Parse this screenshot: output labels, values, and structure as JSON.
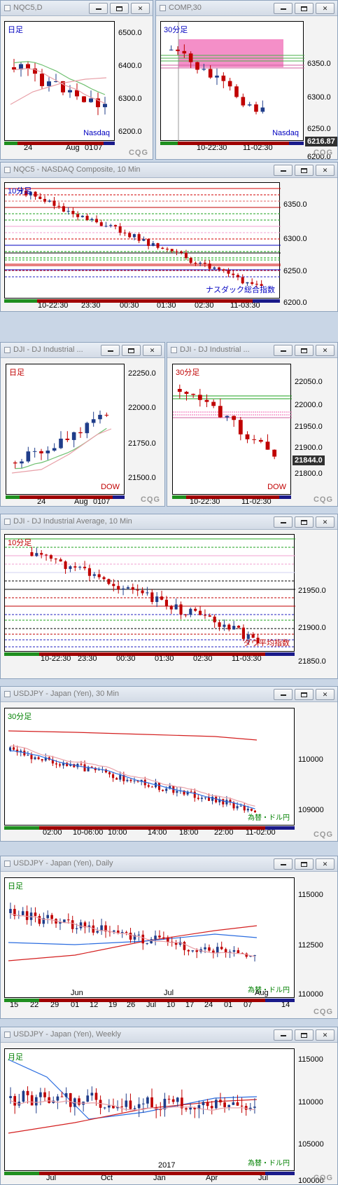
{
  "ui": {
    "minimize_label": "",
    "restore_label": "",
    "close_label": "✕",
    "brand": "CQG"
  },
  "colors": {
    "up": "#1f3d8a",
    "down": "#c00000",
    "ma_red": "#d42020",
    "ma_blue": "#2b6de0",
    "ma_pink": "#e8a0a8",
    "ma_green": "#6fc070"
  },
  "windows": [
    {
      "id": "nqc5-daily",
      "title": "NQC5,D",
      "period_label": "日足",
      "period_color": "#0000c0",
      "corner_label": "Nasdaq",
      "corner_color": "#0000c0",
      "y_ticks": [
        "6500.0",
        "6400.0",
        "6300.0",
        "6200.0"
      ],
      "x_ticks": [
        "24",
        "Aug",
        "01",
        "07"
      ]
    },
    {
      "id": "comp-30",
      "title": "COMP,30",
      "period_label": "30分足",
      "period_color": "#0000c0",
      "corner_label": "Nasdaq",
      "corner_color": "#0000c0",
      "price_box": "6216.87",
      "y_ticks": [
        "6350.0",
        "6300.0",
        "6250.0",
        "6200.0"
      ],
      "x_ticks": [
        "10-22:30",
        "11-02:30"
      ]
    },
    {
      "id": "nqc5-10",
      "title": "NQC5 - NASDAQ Composite, 10 Min",
      "period_label": "10分足",
      "period_color": "#0000c0",
      "corner_label": "ナスダック総合指数",
      "corner_color": "#0000c0",
      "y_ticks": [
        "6350.0",
        "6300.0",
        "6250.0",
        "6200.0"
      ],
      "x_ticks": [
        "10-22:30",
        "23:30",
        "00:30",
        "01:30",
        "02:30",
        "11-03:30"
      ]
    },
    {
      "id": "dji-daily",
      "title": "DJI - DJ Industrial ...",
      "period_label": "日足",
      "period_color": "#c00000",
      "corner_label": "DOW",
      "corner_color": "#c00000",
      "y_ticks": [
        "22250.0",
        "22000.0",
        "21750.0",
        "21500.0"
      ],
      "x_ticks": [
        "24",
        "Aug",
        "01",
        "07"
      ]
    },
    {
      "id": "dji-30",
      "title": "DJI - DJ Industrial ...",
      "period_label": "30分足",
      "period_color": "#c00000",
      "corner_label": "DOW",
      "corner_color": "#c00000",
      "price_box": "21844.0",
      "y_ticks": [
        "22050.0",
        "22000.0",
        "21950.0",
        "21900.0",
        "21800.0"
      ],
      "x_ticks": [
        "10-22:30",
        "11-02:30"
      ]
    },
    {
      "id": "dji-10",
      "title": "DJI - DJ Industrial Average, 10 Min",
      "period_label": "10分足",
      "period_color": "#c00000",
      "corner_label": "ダウ平均指数",
      "corner_color": "#c00000",
      "y_ticks": [
        "21950.0",
        "21900.0",
        "21850.0"
      ],
      "x_ticks": [
        "10-22:30",
        "23:30",
        "00:30",
        "01:30",
        "02:30",
        "11-03:30"
      ]
    },
    {
      "id": "usdjpy-30",
      "title": "USDJPY - Japan (Yen), 30 Min",
      "period_label": "30分足",
      "period_color": "#008000",
      "corner_label": "為替・ドル円",
      "corner_color": "#008000",
      "y_ticks": [
        "110000",
        "109000"
      ],
      "x_ticks": [
        "02:00",
        "10-06:00",
        "10:00",
        "14:00",
        "18:00",
        "22:00",
        "11-02:00"
      ]
    },
    {
      "id": "usdjpy-daily",
      "title": "USDJPY - Japan (Yen), Daily",
      "period_label": "日足",
      "period_color": "#008000",
      "corner_label": "為替・ドル円",
      "corner_color": "#008000",
      "y_ticks": [
        "115000",
        "112500",
        "110000"
      ],
      "x_ticks": [
        "15",
        "22",
        "29",
        "01",
        "12",
        "19",
        "26",
        "Jul",
        "10",
        "17",
        "24",
        "01",
        "07",
        "14"
      ],
      "x_month_labels": [
        "Jun",
        "Jul",
        "Aug"
      ]
    },
    {
      "id": "usdjpy-weekly",
      "title": "USDJPY - Japan (Yen), Weekly",
      "period_label": "月足",
      "period_color": "#008000",
      "corner_label": "為替・ドル円",
      "corner_color": "#008000",
      "y_ticks": [
        "115000",
        "110000",
        "105000",
        "100000"
      ],
      "x_ticks": [
        "Jul",
        "Oct",
        "Jan",
        "Apr",
        "Jul"
      ],
      "x_year_label": "2017"
    }
  ]
}
